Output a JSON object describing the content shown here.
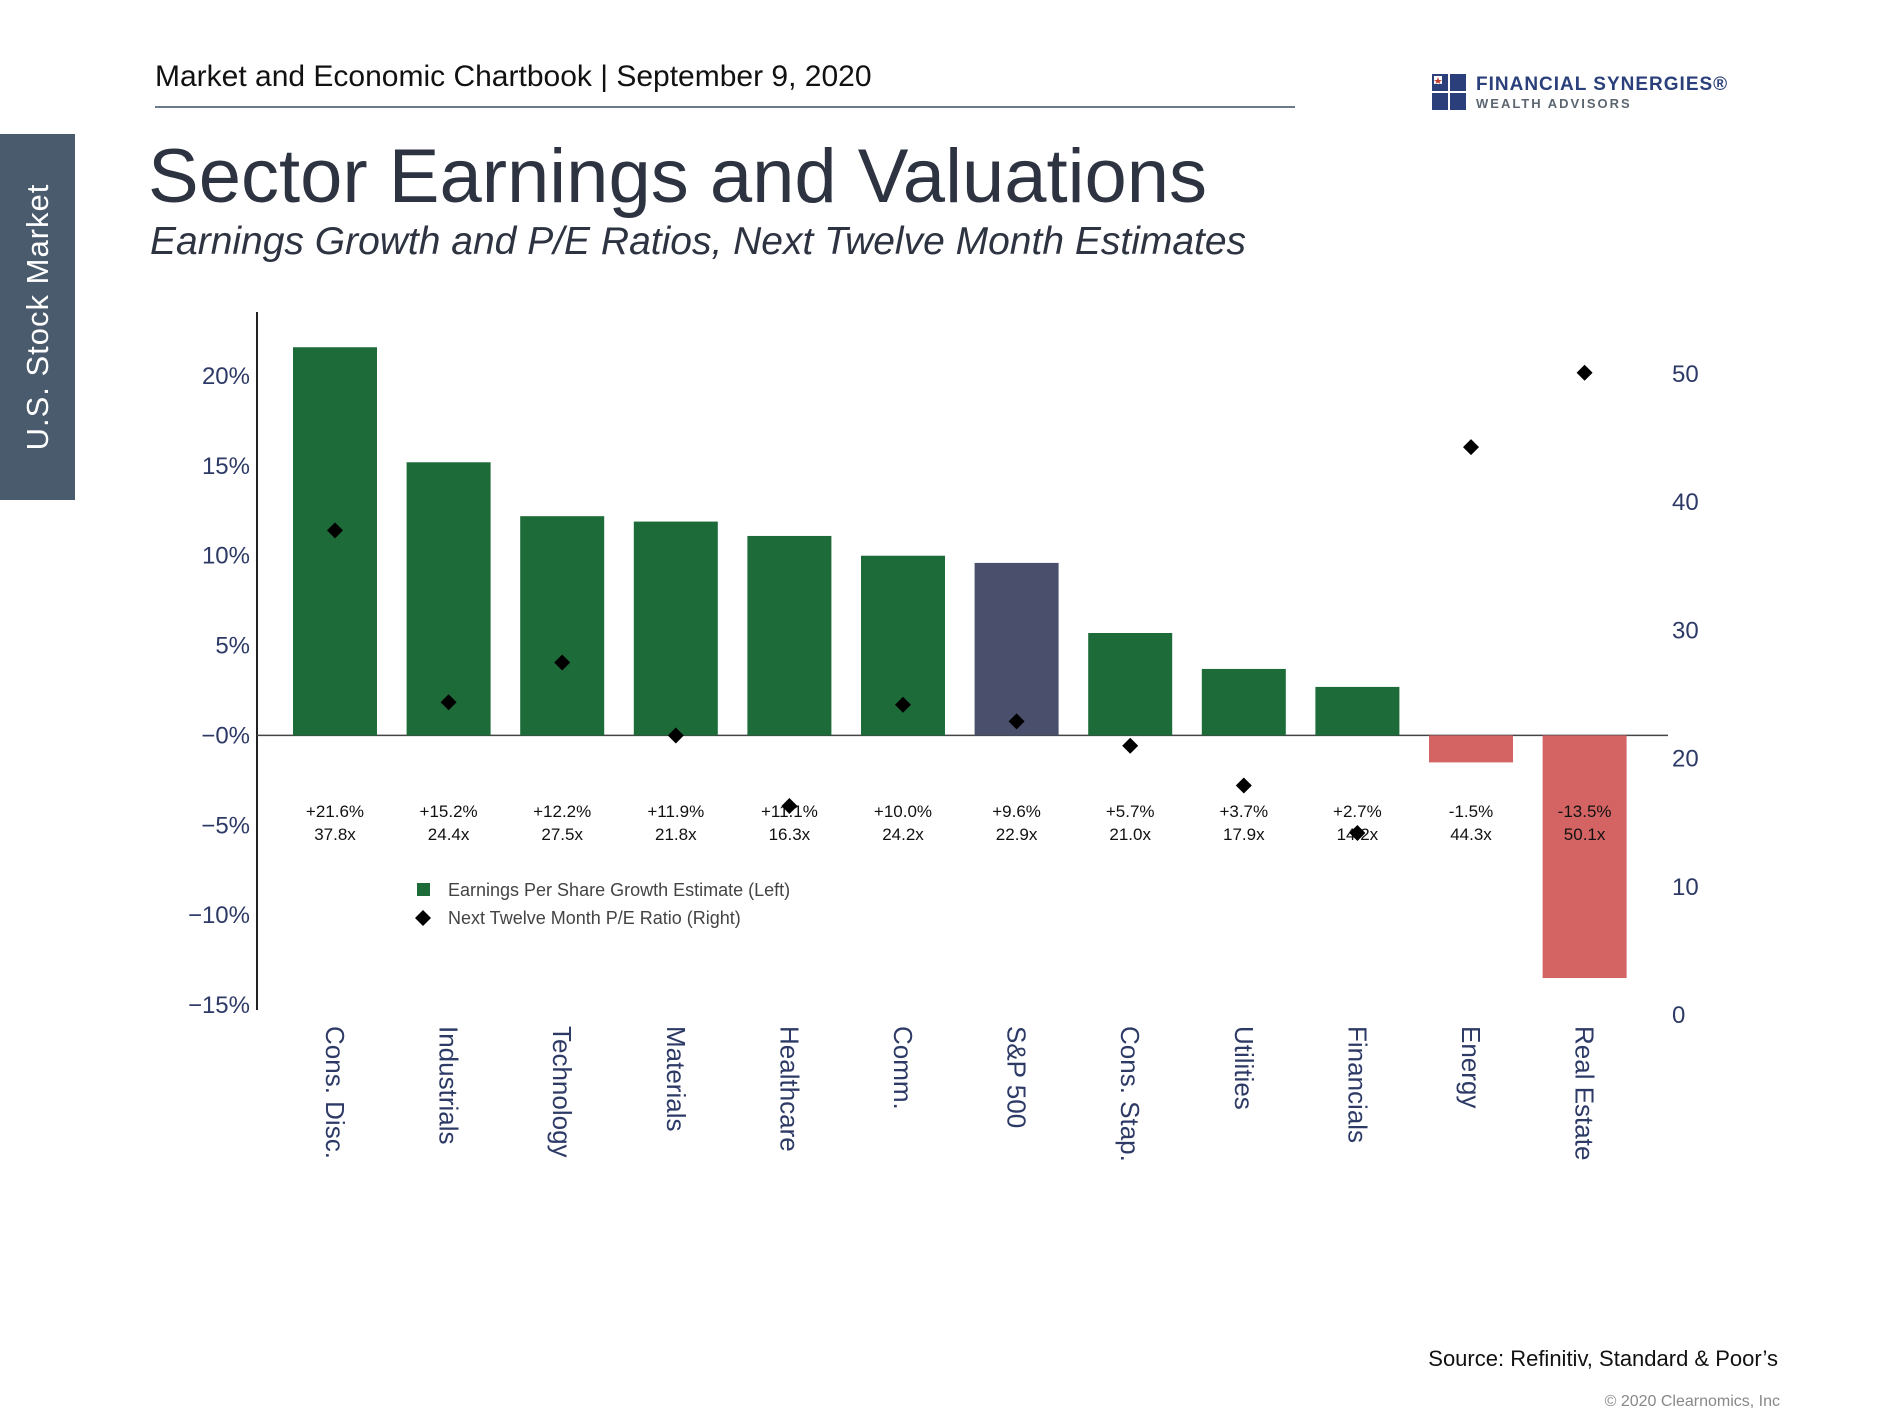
{
  "side_tab": "U.S. Stock Market",
  "header": "Market and Economic Chartbook | September 9, 2020",
  "logo": {
    "name": "FINANCIAL SYNERGIES®",
    "sub": "WEALTH ADVISORS",
    "colors": [
      "#2b3f7a",
      "#5c6670"
    ]
  },
  "title": "Sector Earnings and Valuations",
  "subtitle": "Earnings Growth and P/E Ratios, Next Twelve Month Estimates",
  "chart_data": {
    "type": "bar",
    "categories": [
      "Cons. Disc.",
      "Industrials",
      "Technology",
      "Materials",
      "Healthcare",
      "Comm.",
      "S&P 500",
      "Cons. Stap.",
      "Utilities",
      "Financials",
      "Energy",
      "Real Estate"
    ],
    "series": [
      {
        "name": "Earnings Per Share Growth Estimate (Left)",
        "axis": "left",
        "type": "bar",
        "values": [
          21.6,
          15.2,
          12.2,
          11.9,
          11.1,
          10.0,
          9.6,
          5.7,
          3.7,
          2.7,
          -1.5,
          -13.5
        ]
      },
      {
        "name": "Next Twelve Month P/E Ratio (Right)",
        "axis": "right",
        "type": "scatter",
        "marker": "diamond",
        "values": [
          37.8,
          24.4,
          27.5,
          21.8,
          16.3,
          24.2,
          22.9,
          21.0,
          17.9,
          14.2,
          44.3,
          50.1
        ]
      }
    ],
    "labels_growth": [
      "+21.6%",
      "+15.2%",
      "+12.2%",
      "+11.9%",
      "+11.1%",
      "+10.0%",
      "+9.6%",
      "+5.7%",
      "+3.7%",
      "+2.7%",
      "-1.5%",
      "-13.5%"
    ],
    "labels_pe": [
      "37.8x",
      "24.4x",
      "27.5x",
      "21.8x",
      "16.3x",
      "24.2x",
      "22.9x",
      "21.0x",
      "17.9x",
      "14.2x",
      "44.3x",
      "50.1x"
    ],
    "y_left": {
      "lim": [
        -15,
        22.5
      ],
      "ticks": [
        20,
        15,
        10,
        5,
        0,
        -5,
        -10,
        -15
      ],
      "tick_labels": [
        "20%",
        "15%",
        "10%",
        "5%",
        "−0%",
        "−5%",
        "−10%",
        "−15%"
      ]
    },
    "y_right": {
      "lim": [
        0,
        50
      ],
      "ticks": [
        50,
        40,
        30,
        20,
        10,
        0
      ],
      "tick_labels": [
        "50",
        "40",
        "30",
        "20",
        "10",
        "0"
      ]
    },
    "grid": false,
    "legend": "lower-left",
    "colors": {
      "positive": "#1e6b3a",
      "highlight": "#4a4f6b",
      "negative": "#d46464",
      "marker": "#000000"
    },
    "highlight_category": "S&P 500"
  },
  "source": "Source: Refinitiv, Standard & Poor’s",
  "copyright": "© 2020 Clearnomics, Inc"
}
